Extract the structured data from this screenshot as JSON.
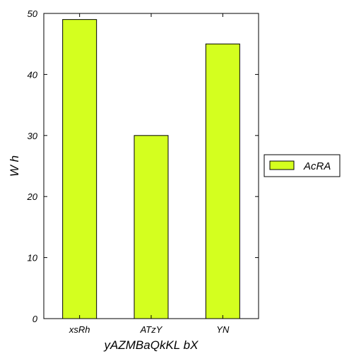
{
  "chart_data": {
    "type": "bar",
    "categories": [
      "xsRh",
      "ATzY",
      "YN"
    ],
    "series": [
      {
        "name": "AcRA",
        "values": [
          49,
          30,
          45
        ]
      }
    ],
    "xlabel": "yAZMBaQkKL  bX",
    "ylabel": "W h",
    "ylim": [
      0,
      50
    ],
    "yticks": [
      "0",
      "10",
      "20",
      "30",
      "40",
      "50"
    ],
    "grid": false,
    "legend_position": "right",
    "bar_color": "#d4ff1f"
  }
}
